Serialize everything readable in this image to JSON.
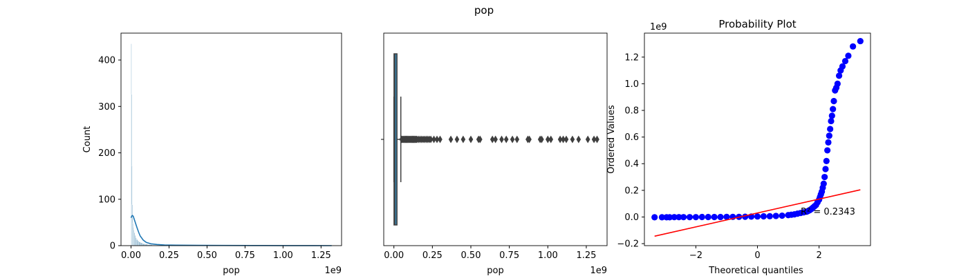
{
  "figure": {
    "suptitle": "pop"
  },
  "chart_data": [
    {
      "type": "histogram",
      "title": "",
      "xlabel": "pop",
      "ylabel": "Count",
      "x_offset_label": "1e9",
      "xlim": [
        -0.066,
        1.385
      ],
      "ylim": [
        0,
        458
      ],
      "xticks": [
        0.0,
        0.25,
        0.5,
        0.75,
        1.0,
        1.25
      ],
      "xtick_labels": [
        "0.00",
        "0.25",
        "0.50",
        "0.75",
        "1.00",
        "1.25"
      ],
      "yticks": [
        0,
        100,
        200,
        300,
        400
      ],
      "ytick_labels": [
        "0",
        "100",
        "200",
        "300",
        "400"
      ],
      "bins": [
        {
          "x0": 0.0,
          "x1": 0.002,
          "count": 435
        },
        {
          "x0": 0.002,
          "x1": 0.004,
          "count": 326
        },
        {
          "x0": 0.004,
          "x1": 0.006,
          "count": 172
        },
        {
          "x0": 0.006,
          "x1": 0.008,
          "count": 88
        },
        {
          "x0": 0.008,
          "x1": 0.01,
          "count": 60
        },
        {
          "x0": 0.01,
          "x1": 0.013,
          "count": 48
        },
        {
          "x0": 0.013,
          "x1": 0.016,
          "count": 40
        },
        {
          "x0": 0.016,
          "x1": 0.02,
          "count": 34
        },
        {
          "x0": 0.02,
          "x1": 0.025,
          "count": 28
        },
        {
          "x0": 0.025,
          "x1": 0.03,
          "count": 22
        },
        {
          "x0": 0.03,
          "x1": 0.036,
          "count": 17
        },
        {
          "x0": 0.036,
          "x1": 0.044,
          "count": 13
        },
        {
          "x0": 0.044,
          "x1": 0.052,
          "count": 10
        },
        {
          "x0": 0.052,
          "x1": 0.062,
          "count": 8
        },
        {
          "x0": 0.062,
          "x1": 0.075,
          "count": 6
        },
        {
          "x0": 0.075,
          "x1": 0.09,
          "count": 4
        },
        {
          "x0": 0.09,
          "x1": 0.11,
          "count": 3
        },
        {
          "x0": 0.11,
          "x1": 0.14,
          "count": 2
        },
        {
          "x0": 0.14,
          "x1": 0.2,
          "count": 1
        },
        {
          "x0": 0.2,
          "x1": 0.3,
          "count": 1
        },
        {
          "x0": 0.3,
          "x1": 1.32,
          "count": 1
        }
      ],
      "kde": {
        "x": [
          0.0,
          0.005,
          0.01,
          0.015,
          0.02,
          0.03,
          0.04,
          0.05,
          0.06,
          0.08,
          0.1,
          0.13,
          0.17,
          0.22,
          0.3,
          0.45,
          0.6,
          0.8,
          1.0,
          1.2,
          1.32
        ],
        "y": [
          60,
          64,
          65,
          63,
          58,
          48,
          38,
          29,
          21,
          12,
          7,
          4,
          2.5,
          1.5,
          1,
          0.6,
          0.4,
          0.3,
          0.2,
          0.1,
          0.05
        ]
      },
      "colors": {
        "bar": "#4c8db5",
        "kde": "#1f77b4"
      }
    },
    {
      "type": "box",
      "title": "",
      "xlabel": "pop",
      "ylabel": "",
      "x_offset_label": "1e9",
      "xlim": [
        -0.066,
        1.385
      ],
      "xticks": [
        0.0,
        0.25,
        0.5,
        0.75,
        1.0,
        1.25
      ],
      "xtick_labels": [
        "0.00",
        "0.25",
        "0.50",
        "0.75",
        "1.00",
        "1.25"
      ],
      "box": {
        "q1": 0.0008,
        "median": 0.005,
        "q3": 0.02,
        "whisker_low": 0.0,
        "whisker_high": 0.045
      },
      "outliers": [
        0.05,
        0.055,
        0.06,
        0.065,
        0.07,
        0.075,
        0.08,
        0.085,
        0.09,
        0.095,
        0.1,
        0.105,
        0.11,
        0.115,
        0.12,
        0.125,
        0.13,
        0.135,
        0.14,
        0.145,
        0.15,
        0.16,
        0.17,
        0.18,
        0.19,
        0.2,
        0.21,
        0.22,
        0.23,
        0.24,
        0.26,
        0.28,
        0.3,
        0.37,
        0.41,
        0.45,
        0.5,
        0.55,
        0.56,
        0.64,
        0.66,
        0.7,
        0.73,
        0.77,
        0.8,
        0.87,
        0.88,
        0.95,
        0.96,
        1.0,
        1.02,
        1.08,
        1.1,
        1.12,
        1.16,
        1.2,
        1.26,
        1.3,
        1.32
      ],
      "colors": {
        "box": "#3a7fa6",
        "line": "#3f3f3f"
      }
    },
    {
      "type": "scatter",
      "title": "Probability Plot",
      "xlabel": "Theoretical quantiles",
      "ylabel": "Ordered Values",
      "y_offset_label": "1e9",
      "xlim": [
        -3.67,
        3.67
      ],
      "ylim": [
        -0.215,
        1.38
      ],
      "xticks": [
        -2,
        0,
        2
      ],
      "xtick_labels": [
        "−2",
        "0",
        "2"
      ],
      "yticks": [
        -0.2,
        0.0,
        0.2,
        0.4,
        0.6,
        0.8,
        1.0,
        1.2
      ],
      "ytick_labels": [
        "−0.2",
        "0.0",
        "0.2",
        "0.4",
        "0.6",
        "0.8",
        "1.0",
        "1.2"
      ],
      "points": {
        "x": [
          -3.34,
          -3.1,
          -2.95,
          -2.85,
          -2.7,
          -2.55,
          -2.4,
          -2.2,
          -2.0,
          -1.8,
          -1.6,
          -1.4,
          -1.2,
          -1.0,
          -0.8,
          -0.6,
          -0.4,
          -0.2,
          0.0,
          0.2,
          0.4,
          0.6,
          0.8,
          1.0,
          1.1,
          1.2,
          1.3,
          1.4,
          1.5,
          1.6,
          1.65,
          1.7,
          1.75,
          1.8,
          1.85,
          1.9,
          1.95,
          2.0,
          2.03,
          2.06,
          2.09,
          2.12,
          2.15,
          2.18,
          2.21,
          2.24,
          2.27,
          2.3,
          2.33,
          2.36,
          2.39,
          2.42,
          2.45,
          2.48,
          2.52,
          2.56,
          2.6,
          2.65,
          2.7,
          2.76,
          2.85,
          2.95,
          3.1,
          3.34
        ],
        "y": [
          -0.002,
          -0.002,
          -0.002,
          -0.002,
          -0.001,
          -0.001,
          -0.001,
          -0.001,
          -0.001,
          0.0,
          0.0,
          0.0,
          0.0,
          0.001,
          0.001,
          0.001,
          0.002,
          0.003,
          0.004,
          0.005,
          0.006,
          0.008,
          0.01,
          0.014,
          0.017,
          0.02,
          0.025,
          0.03,
          0.035,
          0.04,
          0.046,
          0.052,
          0.06,
          0.07,
          0.08,
          0.09,
          0.11,
          0.13,
          0.15,
          0.17,
          0.19,
          0.22,
          0.25,
          0.3,
          0.36,
          0.42,
          0.5,
          0.56,
          0.61,
          0.66,
          0.72,
          0.76,
          0.81,
          0.87,
          0.95,
          0.97,
          1.0,
          1.06,
          1.1,
          1.13,
          1.17,
          1.21,
          1.28,
          1.32
        ]
      },
      "fit_line": {
        "x": [
          -3.34,
          3.34
        ],
        "y": [
          -0.144,
          0.204
        ]
      },
      "annotation": "R² = 0.2343",
      "colors": {
        "points": "#0000ff",
        "fit": "#ff0000"
      }
    }
  ]
}
